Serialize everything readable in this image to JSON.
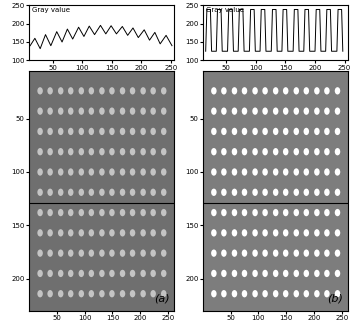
{
  "chart_data": [
    {
      "type": "line",
      "ylabel": "Gray value",
      "color": "#000000",
      "x": [
        12,
        20,
        29,
        38,
        47,
        57,
        66,
        75,
        84,
        94,
        103,
        112,
        121,
        131,
        140,
        149,
        158,
        168,
        177,
        186,
        195,
        205,
        214,
        223,
        232,
        242,
        252
      ],
      "values": [
        140,
        160,
        132,
        170,
        140,
        178,
        150,
        185,
        158,
        190,
        165,
        193,
        170,
        195,
        172,
        194,
        172,
        192,
        168,
        188,
        162,
        183,
        155,
        176,
        145,
        168,
        140
      ],
      "xlim": [
        10,
        255
      ],
      "xticks": [
        50,
        100,
        150,
        200,
        250
      ],
      "ylim": [
        100,
        250
      ],
      "yticks": [
        100,
        150,
        200,
        250
      ]
    },
    {
      "type": "scatter",
      "label": "(a)",
      "color": "#c4c4c4",
      "columns": [
        20,
        38,
        57,
        75,
        94,
        112,
        131,
        149,
        168,
        186,
        205,
        223,
        242
      ],
      "rows": [
        24,
        43,
        62,
        81,
        100,
        119,
        138,
        157,
        176,
        195,
        214
      ],
      "profile_row": 129,
      "xlim": [
        0,
        260
      ],
      "xticks": [
        50,
        100,
        150,
        200,
        250
      ],
      "ylim": [
        230,
        5
      ],
      "yticks": [
        50,
        100,
        150,
        200
      ]
    },
    {
      "type": "line",
      "ylabel": "Gray value",
      "color": "#000000",
      "x": [
        15,
        17,
        23,
        25,
        33,
        35,
        41,
        43,
        52,
        54,
        60,
        62,
        70,
        72,
        78,
        80,
        89,
        91,
        97,
        99,
        107,
        109,
        115,
        117,
        126,
        128,
        134,
        136,
        144,
        146,
        152,
        154,
        163,
        165,
        171,
        173,
        181,
        183,
        189,
        191,
        200,
        202,
        208,
        210,
        218,
        220,
        226,
        228,
        237,
        239,
        245,
        247
      ],
      "values": [
        125,
        238,
        238,
        125,
        125,
        238,
        238,
        125,
        125,
        238,
        238,
        125,
        125,
        238,
        238,
        125,
        125,
        238,
        238,
        125,
        125,
        238,
        238,
        125,
        125,
        238,
        238,
        125,
        125,
        238,
        238,
        125,
        125,
        238,
        238,
        125,
        125,
        238,
        238,
        125,
        125,
        238,
        238,
        125,
        125,
        238,
        238,
        125,
        125,
        238,
        238,
        125
      ],
      "xlim": [
        10,
        255
      ],
      "xticks": [
        50,
        100,
        150,
        200,
        250
      ],
      "ylim": [
        100,
        250
      ],
      "yticks": [
        100,
        150,
        200,
        250
      ]
    },
    {
      "type": "scatter",
      "label": "(b)",
      "color": "#ffffff",
      "columns": [
        20,
        38,
        57,
        75,
        94,
        112,
        131,
        149,
        168,
        186,
        205,
        223,
        242
      ],
      "rows": [
        24,
        43,
        62,
        81,
        100,
        119,
        138,
        157,
        176,
        195,
        214
      ],
      "profile_row": 129,
      "xlim": [
        0,
        260
      ],
      "xticks": [
        50,
        100,
        150,
        200,
        250
      ],
      "ylim": [
        230,
        5
      ],
      "yticks": [
        50,
        100,
        150,
        200
      ]
    }
  ]
}
